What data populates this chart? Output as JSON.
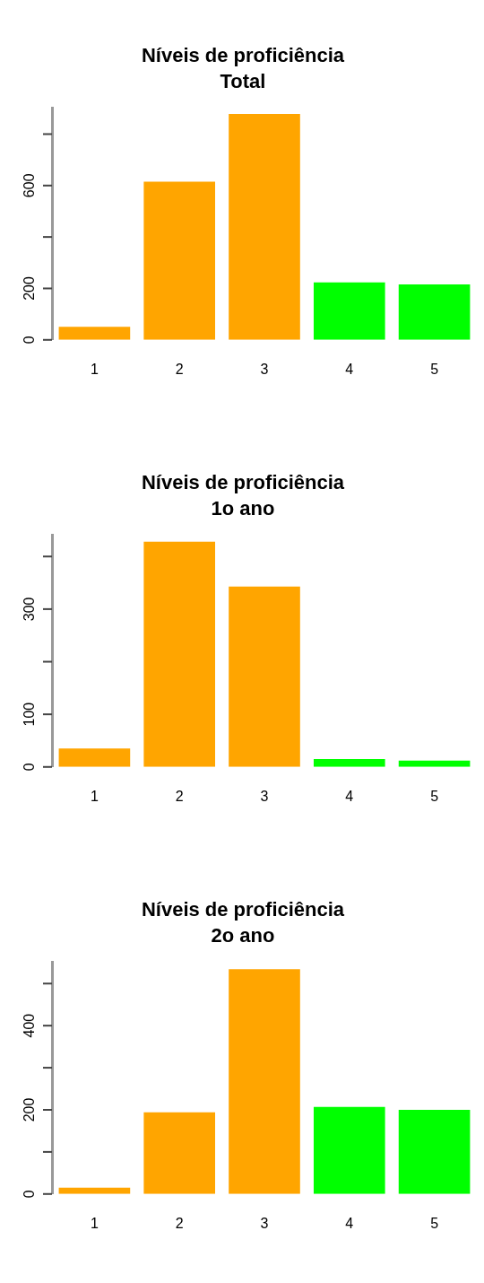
{
  "chart_data": [
    {
      "type": "bar",
      "title": "Níveis de proficiência",
      "subtitle": "Total",
      "categories": [
        "1",
        "2",
        "3",
        "4",
        "5"
      ],
      "values": [
        51,
        615,
        878,
        223,
        216
      ],
      "colors": [
        "#ffa500",
        "#ffa500",
        "#ffa500",
        "#00ff00",
        "#00ff00"
      ],
      "ylim": [
        0,
        900
      ],
      "yticks": [
        0,
        200,
        {
          "value": 400,
          "label": null
        },
        600,
        {
          "value": 800,
          "label": null
        }
      ],
      "grid": false,
      "legend": false
    },
    {
      "type": "bar",
      "title": "Níveis de proficiência",
      "subtitle": "1o ano",
      "categories": [
        "1",
        "2",
        "3",
        "4",
        "5"
      ],
      "values": [
        35,
        428,
        343,
        15,
        12
      ],
      "colors": [
        "#ffa500",
        "#ffa500",
        "#ffa500",
        "#00ff00",
        "#00ff00"
      ],
      "ylim": [
        0,
        440
      ],
      "yticks": [
        0,
        100,
        {
          "value": 200,
          "label": null
        },
        300,
        {
          "value": 400,
          "label": null
        }
      ],
      "grid": false,
      "legend": false
    },
    {
      "type": "bar",
      "title": "Níveis de proficiência",
      "subtitle": "2o ano",
      "categories": [
        "1",
        "2",
        "3",
        "4",
        "5"
      ],
      "values": [
        15,
        194,
        534,
        207,
        200
      ],
      "colors": [
        "#ffa500",
        "#ffa500",
        "#ffa500",
        "#00ff00",
        "#00ff00"
      ],
      "ylim": [
        0,
        550
      ],
      "yticks": [
        0,
        {
          "value": 100,
          "label": null
        },
        200,
        {
          "value": 300,
          "label": null
        },
        400,
        {
          "value": 500,
          "label": null
        }
      ],
      "grid": false,
      "legend": false
    }
  ]
}
